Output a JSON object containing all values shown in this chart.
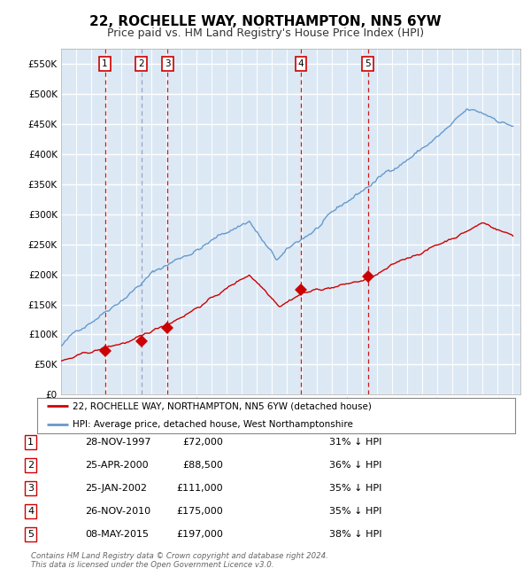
{
  "title": "22, ROCHELLE WAY, NORTHAMPTON, NN5 6YW",
  "subtitle": "Price paid vs. HM Land Registry's House Price Index (HPI)",
  "ytick_vals": [
    0,
    50000,
    100000,
    150000,
    200000,
    250000,
    300000,
    350000,
    400000,
    450000,
    500000,
    550000
  ],
  "ylim": [
    0,
    575000
  ],
  "xlim_start": 1995.0,
  "xlim_end": 2025.5,
  "bg_color": "#dce9f5",
  "grid_color": "#ffffff",
  "red_line_color": "#cc0000",
  "blue_line_color": "#6699cc",
  "sale_points": [
    {
      "year": 1997.91,
      "price": 72000,
      "label": "1"
    },
    {
      "year": 2000.32,
      "price": 88500,
      "label": "2"
    },
    {
      "year": 2002.07,
      "price": 111000,
      "label": "3"
    },
    {
      "year": 2010.91,
      "price": 175000,
      "label": "4"
    },
    {
      "year": 2015.37,
      "price": 197000,
      "label": "5"
    }
  ],
  "legend_entries": [
    "22, ROCHELLE WAY, NORTHAMPTON, NN5 6YW (detached house)",
    "HPI: Average price, detached house, West Northamptonshire"
  ],
  "table_rows": [
    [
      "1",
      "28-NOV-1997",
      "£72,000",
      "31% ↓ HPI"
    ],
    [
      "2",
      "25-APR-2000",
      "£88,500",
      "36% ↓ HPI"
    ],
    [
      "3",
      "25-JAN-2002",
      "£111,000",
      "35% ↓ HPI"
    ],
    [
      "4",
      "26-NOV-2010",
      "£175,000",
      "35% ↓ HPI"
    ],
    [
      "5",
      "08-MAY-2015",
      "£197,000",
      "38% ↓ HPI"
    ]
  ],
  "footer": "Contains HM Land Registry data © Crown copyright and database right 2024.\nThis data is licensed under the Open Government Licence v3.0.",
  "title_fontsize": 11,
  "subtitle_fontsize": 9
}
